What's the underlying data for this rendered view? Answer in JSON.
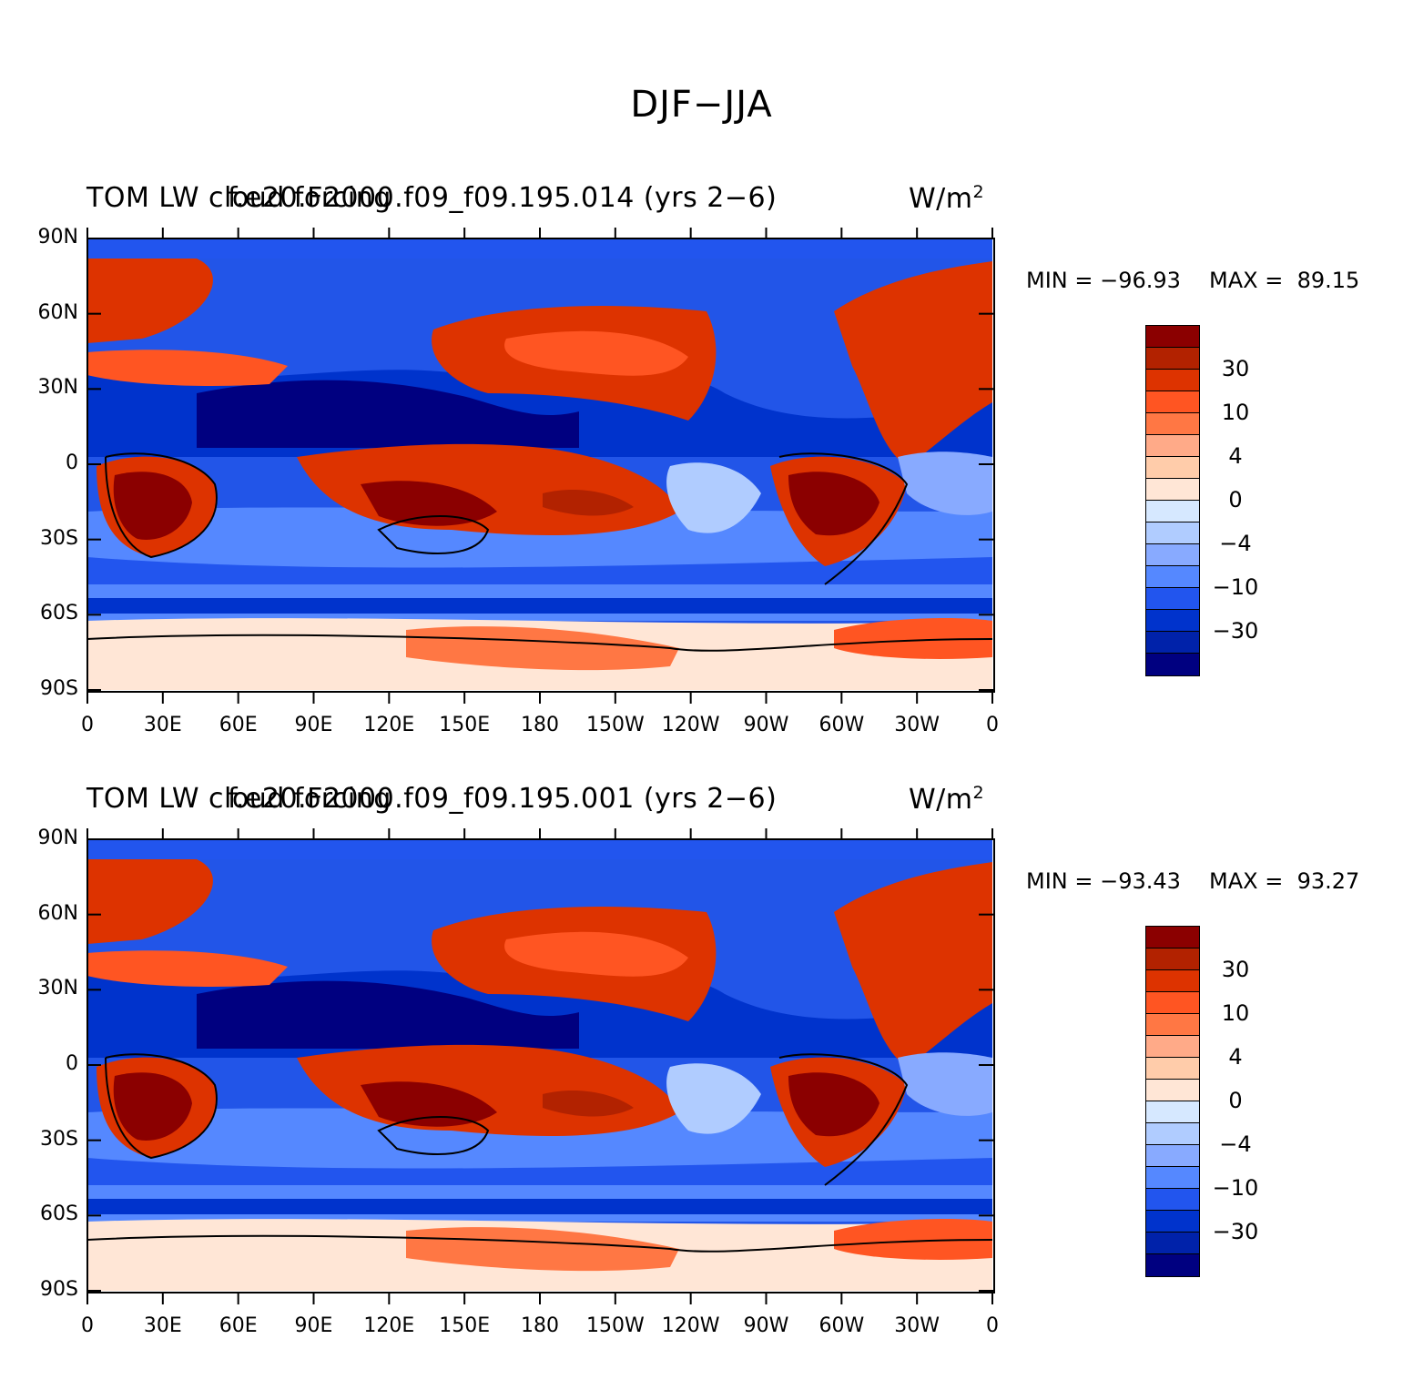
{
  "figure_title": "DJF−JJA",
  "units": "W/m",
  "units_superscript": "2",
  "axes": {
    "lat_labels": [
      "90N",
      "60N",
      "30N",
      "0",
      "30S",
      "60S",
      "90S"
    ],
    "lon_labels": [
      "0",
      "30E",
      "60E",
      "90E",
      "120E",
      "150E",
      "180",
      "150W",
      "120W",
      "90W",
      "60W",
      "30W",
      "0"
    ]
  },
  "colorbar": {
    "colors": [
      "#8b0000",
      "#b22200",
      "#dd3300",
      "#ff5522",
      "#ff7744",
      "#ffaa88",
      "#ffccaa",
      "#ffe6d6",
      "#d6e8ff",
      "#b0ccff",
      "#88aaff",
      "#5588ff",
      "#2255ee",
      "#0033cc",
      "#0022aa",
      "#000080"
    ],
    "labels": [
      "30",
      "10",
      "4",
      "0",
      "−4",
      "−10",
      "−30"
    ]
  },
  "panels": [
    {
      "left_label": "TOM LW cloud forcing",
      "case_label": "f.e20.F2000.f09_f09.195.014 (yrs 2−6)",
      "min_label": "MIN = −96.93",
      "max_label": "MAX =  89.15"
    },
    {
      "left_label": "TOM LW cloud forcing",
      "case_label": "f.e20.F2000.f09_f09.195.001 (yrs 2−6)",
      "min_label": "MIN = −93.43",
      "max_label": "MAX =  93.27"
    }
  ]
}
